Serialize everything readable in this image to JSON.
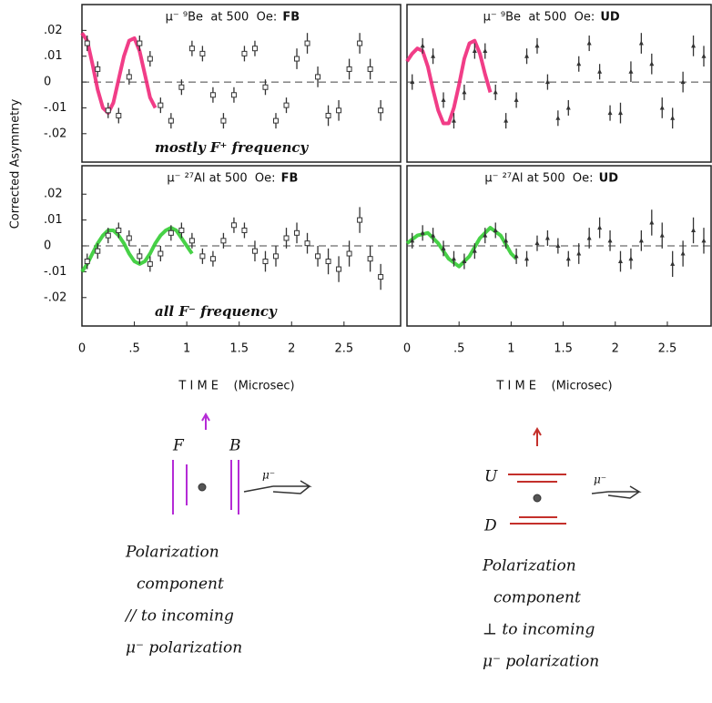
{
  "chart_data": [
    {
      "type": "scatter",
      "title": "μ⁻ ⁹Be  at 500  Oe: ",
      "tag": "FB",
      "tag_color": "#7a2aa0",
      "ylabel": "Corrected Asymmetry",
      "annotation": "mostly F⁺ frequency",
      "annotation_color": "#e8206a",
      "marker": "square",
      "color": "#333333",
      "x": [
        0.05,
        0.15,
        0.25,
        0.35,
        0.45,
        0.55,
        0.65,
        0.75,
        0.85,
        0.95,
        1.05,
        1.15,
        1.25,
        1.35,
        1.45,
        1.55,
        1.65,
        1.75,
        1.85,
        1.95,
        2.05,
        2.15,
        2.25,
        2.35,
        2.45,
        2.55,
        2.65,
        2.75,
        2.85
      ],
      "values": [
        0.015,
        0.005,
        -0.011,
        -0.013,
        0.002,
        0.015,
        0.009,
        -0.009,
        -0.015,
        -0.002,
        0.013,
        0.011,
        -0.005,
        -0.015,
        -0.005,
        0.011,
        0.013,
        -0.002,
        -0.015,
        -0.009,
        0.009,
        0.015,
        0.002,
        -0.013,
        -0.011,
        0.005,
        0.015,
        0.005,
        -0.011
      ],
      "errors": [
        0.003,
        0.003,
        0.003,
        0.003,
        0.003,
        0.003,
        0.003,
        0.003,
        0.003,
        0.003,
        0.003,
        0.003,
        0.003,
        0.003,
        0.003,
        0.003,
        0.003,
        0.003,
        0.003,
        0.003,
        0.004,
        0.004,
        0.004,
        0.004,
        0.004,
        0.004,
        0.004,
        0.004,
        0.004
      ],
      "fit": {
        "color": "#f0287a",
        "x": [
          0,
          0.05,
          0.1,
          0.15,
          0.2,
          0.25,
          0.3,
          0.35,
          0.4,
          0.45,
          0.5,
          0.55,
          0.6,
          0.65,
          0.7
        ],
        "values": [
          0.019,
          0.016,
          0.007,
          -0.003,
          -0.01,
          -0.012,
          -0.008,
          0.001,
          0.01,
          0.016,
          0.017,
          0.012,
          0.003,
          -0.006,
          -0.01
        ]
      },
      "xlim": [
        0,
        3.04
      ],
      "ylim": [
        -0.031,
        0.03
      ],
      "yticks": [
        {
          "value": 0.02,
          "label": ".02"
        },
        {
          "value": 0.01,
          "label": ".01"
        },
        0,
        {
          "value": -0.01,
          "label": "-.01"
        },
        {
          "value": -0.02,
          "label": "-.02"
        }
      ]
    },
    {
      "type": "scatter",
      "title": "μ⁻ ⁹Be  at 500  Oe: ",
      "tag": "UD",
      "tag_color": "#c4302b",
      "marker": "triangle",
      "color": "#333333",
      "x": [
        0.05,
        0.15,
        0.25,
        0.35,
        0.45,
        0.55,
        0.65,
        0.75,
        0.85,
        0.95,
        1.05,
        1.15,
        1.25,
        1.35,
        1.45,
        1.55,
        1.65,
        1.75,
        1.85,
        1.95,
        2.05,
        2.15,
        2.25,
        2.35,
        2.45,
        2.55,
        2.65,
        2.75,
        2.85
      ],
      "values": [
        0,
        0.014,
        0.01,
        -0.007,
        -0.015,
        -0.004,
        0.012,
        0.012,
        -0.004,
        -0.015,
        -0.007,
        0.01,
        0.014,
        0,
        -0.014,
        -0.01,
        0.007,
        0.015,
        0.004,
        -0.012,
        -0.012,
        0.004,
        0.015,
        0.007,
        -0.01,
        -0.014,
        0,
        0.014,
        0.01
      ],
      "errors": [
        0.003,
        0.003,
        0.003,
        0.003,
        0.003,
        0.003,
        0.003,
        0.003,
        0.003,
        0.003,
        0.003,
        0.003,
        0.003,
        0.003,
        0.003,
        0.003,
        0.003,
        0.003,
        0.003,
        0.003,
        0.004,
        0.004,
        0.004,
        0.004,
        0.004,
        0.004,
        0.004,
        0.004,
        0.004
      ],
      "fit": {
        "color": "#f0287a",
        "x": [
          0,
          0.05,
          0.1,
          0.15,
          0.2,
          0.25,
          0.3,
          0.35,
          0.4,
          0.45,
          0.5,
          0.55,
          0.6,
          0.65,
          0.7,
          0.75,
          0.8
        ],
        "values": [
          0.008,
          0.011,
          0.013,
          0.012,
          0.006,
          -0.003,
          -0.011,
          -0.016,
          -0.016,
          -0.01,
          -0.001,
          0.009,
          0.015,
          0.016,
          0.011,
          0.003,
          -0.004
        ]
      },
      "xlim": [
        0,
        2.92
      ],
      "ylim": [
        -0.031,
        0.03
      ]
    },
    {
      "type": "scatter",
      "title": "μ⁻ ²⁷Al at 500  Oe: ",
      "tag": "FB",
      "tag_color": "#7a2aa0",
      "annotation": "all F⁻ frequency",
      "annotation_color": "#22cc22",
      "xlabel": "T I M E    (Microsec)",
      "marker": "square",
      "color": "#333333",
      "x": [
        0.05,
        0.15,
        0.25,
        0.35,
        0.45,
        0.55,
        0.65,
        0.75,
        0.85,
        0.95,
        1.05,
        1.15,
        1.25,
        1.35,
        1.45,
        1.55,
        1.65,
        1.75,
        1.85,
        1.95,
        2.05,
        2.15,
        2.25,
        2.35,
        2.45,
        2.55,
        2.65,
        2.75,
        2.85
      ],
      "values": [
        -0.006,
        -0.002,
        0.004,
        0.006,
        0.003,
        -0.004,
        -0.007,
        -0.003,
        0.005,
        0.006,
        0.002,
        -0.004,
        -0.005,
        0.002,
        0.008,
        0.006,
        -0.002,
        -0.006,
        -0.004,
        0.003,
        0.005,
        0.001,
        -0.004,
        -0.006,
        -0.009,
        -0.003,
        0.01,
        -0.005,
        -0.012
      ],
      "errors": [
        0.003,
        0.003,
        0.003,
        0.003,
        0.003,
        0.003,
        0.003,
        0.003,
        0.003,
        0.003,
        0.003,
        0.003,
        0.003,
        0.003,
        0.003,
        0.003,
        0.004,
        0.004,
        0.004,
        0.004,
        0.004,
        0.004,
        0.004,
        0.005,
        0.005,
        0.005,
        0.005,
        0.005,
        0.005
      ],
      "fit": {
        "color": "#33cc33",
        "x": [
          0,
          0.05,
          0.1,
          0.15,
          0.2,
          0.25,
          0.3,
          0.35,
          0.4,
          0.45,
          0.5,
          0.55,
          0.6,
          0.65,
          0.7,
          0.75,
          0.8,
          0.85,
          0.9,
          0.95,
          1,
          1.05
        ],
        "values": [
          -0.01,
          -0.007,
          -0.003,
          0.001,
          0.004,
          0.006,
          0.006,
          0.004,
          0.001,
          -0.003,
          -0.006,
          -0.007,
          -0.006,
          -0.003,
          0.001,
          0.004,
          0.006,
          0.007,
          0.006,
          0.003,
          0,
          -0.003
        ]
      },
      "xlim": [
        0,
        3.04
      ],
      "ylim": [
        -0.031,
        0.031
      ],
      "xticks": [
        0,
        {
          "value": 0.5,
          "label": ".5"
        },
        1,
        1.5,
        2,
        2.5
      ],
      "yticks": [
        {
          "value": 0.02,
          "label": ".02"
        },
        {
          "value": 0.01,
          "label": ".01"
        },
        0,
        {
          "value": -0.01,
          "label": "-.01"
        },
        {
          "value": -0.02,
          "label": "-.02"
        }
      ]
    },
    {
      "type": "scatter",
      "title": "μ⁻ ²⁷Al at 500  Oe: ",
      "tag": "UD",
      "tag_color": "#c4302b",
      "xlabel": "T I M E    (Microsec)",
      "marker": "triangle",
      "color": "#333333",
      "x": [
        0.05,
        0.15,
        0.25,
        0.35,
        0.45,
        0.55,
        0.65,
        0.75,
        0.85,
        0.95,
        1.05,
        1.15,
        1.25,
        1.35,
        1.45,
        1.55,
        1.65,
        1.75,
        1.85,
        1.95,
        2.05,
        2.15,
        2.25,
        2.35,
        2.45,
        2.55,
        2.65,
        2.75,
        2.85
      ],
      "values": [
        0.002,
        0.005,
        0.004,
        -0.001,
        -0.005,
        -0.006,
        -0.002,
        0.004,
        0.006,
        0.002,
        -0.004,
        -0.005,
        0.001,
        0.003,
        0,
        -0.005,
        -0.003,
        0.003,
        0.007,
        0.002,
        -0.006,
        -0.005,
        0.002,
        0.009,
        0.004,
        -0.007,
        -0.003,
        0.006,
        0.002
      ],
      "errors": [
        0.003,
        0.003,
        0.003,
        0.003,
        0.003,
        0.003,
        0.003,
        0.003,
        0.003,
        0.003,
        0.003,
        0.003,
        0.003,
        0.003,
        0.003,
        0.003,
        0.004,
        0.004,
        0.004,
        0.004,
        0.004,
        0.004,
        0.004,
        0.005,
        0.005,
        0.005,
        0.005,
        0.005,
        0.005
      ],
      "fit": {
        "color": "#33cc33",
        "x": [
          0,
          0.1,
          0.2,
          0.3,
          0.4,
          0.5,
          0.6,
          0.7,
          0.8,
          0.9,
          1,
          1.05
        ],
        "values": [
          0.001,
          0.004,
          0.005,
          0.001,
          -0.005,
          -0.008,
          -0.004,
          0.003,
          0.007,
          0.004,
          -0.003,
          -0.005
        ]
      },
      "xlim": [
        0,
        2.92
      ],
      "ylim": [
        -0.031,
        0.031
      ],
      "xticks": [
        0,
        {
          "value": 0.5,
          "label": ".5"
        },
        1,
        1.5,
        2,
        2.5
      ]
    }
  ],
  "diagrams": [
    {
      "color": "#b52bd6",
      "labels": [
        "F",
        "B",
        "μ⁻"
      ],
      "caption": [
        "Polarization",
        "component",
        "// to incoming",
        "μ⁻ polarization"
      ]
    },
    {
      "color": "#c4302b",
      "labels": [
        "U",
        "D",
        "μ⁻"
      ],
      "caption": [
        "Polarization",
        "component",
        "⊥ to incoming",
        "μ⁻ polarization"
      ]
    }
  ]
}
